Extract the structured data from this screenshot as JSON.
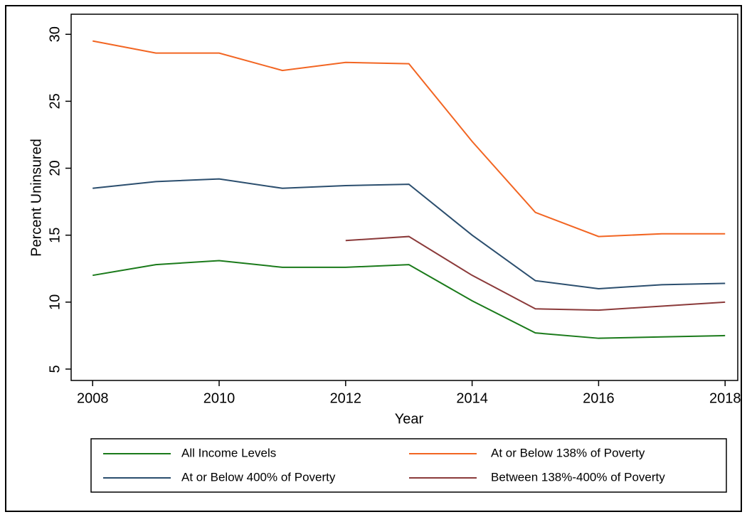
{
  "chart_data": {
    "type": "line",
    "xlabel": "Year",
    "ylabel": "Percent Uninsured",
    "x": [
      2008,
      2009,
      2010,
      2011,
      2012,
      2013,
      2014,
      2015,
      2016,
      2017,
      2018
    ],
    "series": [
      {
        "name": "All Income Levels",
        "color": "#1a7a1a",
        "values": [
          12.0,
          12.8,
          13.1,
          12.6,
          12.6,
          12.8,
          10.1,
          7.7,
          7.3,
          7.4,
          7.5
        ]
      },
      {
        "name": "At or Below 138% of Poverty",
        "color": "#f26522",
        "values": [
          29.5,
          28.6,
          28.6,
          27.3,
          27.9,
          27.8,
          22.0,
          16.7,
          14.9,
          15.1,
          15.1
        ]
      },
      {
        "name": "At or Below 400% of Poverty",
        "color": "#2b4e6e",
        "values": [
          18.5,
          19.0,
          19.2,
          18.5,
          18.7,
          18.8,
          15.0,
          11.6,
          11.0,
          11.3,
          11.4
        ]
      },
      {
        "name": "Between 138%-400% of Poverty",
        "color": "#8b3a3a",
        "values": [
          null,
          null,
          null,
          null,
          14.6,
          14.9,
          12.0,
          9.5,
          9.4,
          9.7,
          10.0
        ]
      }
    ],
    "xlim": [
      2007.66,
      2018.2
    ],
    "xticks": [
      2008,
      2010,
      2012,
      2014,
      2016,
      2018
    ],
    "ylim": [
      4.15,
      31.5
    ],
    "yticks": [
      5,
      10,
      15,
      20,
      25,
      30
    ],
    "grid": false,
    "legend": "bottom"
  }
}
